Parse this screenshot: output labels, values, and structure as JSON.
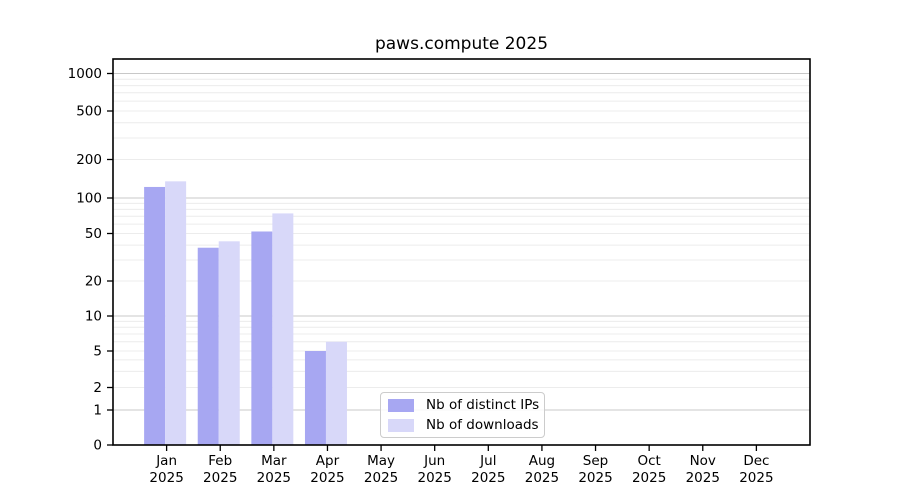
{
  "chart_data": {
    "type": "bar",
    "title": "paws.compute 2025",
    "categories": [
      "Jan 2025",
      "Feb 2025",
      "Mar 2025",
      "Apr 2025",
      "May 2025",
      "Jun 2025",
      "Jul 2025",
      "Aug 2025",
      "Sep 2025",
      "Oct 2025",
      "Nov 2025",
      "Dec 2025"
    ],
    "series": [
      {
        "name": "Nb of distinct IPs",
        "color": "#a7a7f2",
        "values": [
          122,
          38,
          52,
          5,
          0,
          0,
          0,
          0,
          0,
          0,
          0,
          0
        ]
      },
      {
        "name": "Nb of downloads",
        "color": "#d8d8f9",
        "values": [
          135,
          43,
          74,
          6,
          0,
          0,
          0,
          0,
          0,
          0,
          0,
          0
        ]
      }
    ],
    "y_axis": {
      "scale": "symlog",
      "ticks": [
        0,
        1,
        2,
        5,
        10,
        20,
        50,
        100,
        200,
        500,
        1000
      ],
      "ylim": [
        0,
        1300
      ]
    },
    "legend": {
      "position": "lower center"
    },
    "grid": {
      "major": true,
      "minor": true
    },
    "colors": {
      "axis": "#000000",
      "major_grid": "#c8c8c8",
      "minor_grid": "#ececec",
      "background": "#ffffff"
    }
  }
}
